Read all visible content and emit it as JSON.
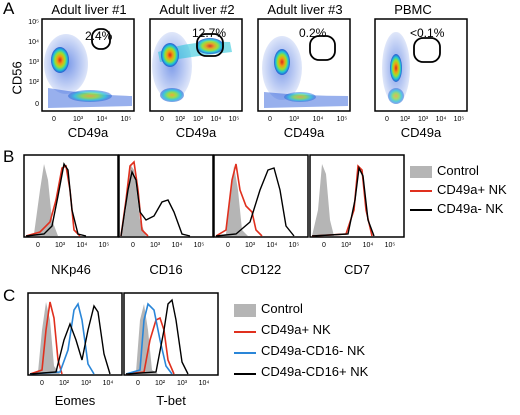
{
  "panelA": {
    "letter": "A",
    "ylabel": "CD56",
    "xlabel": "CD49a",
    "plots": [
      {
        "title": "Adult liver #1",
        "gate_pct": "2.4%"
      },
      {
        "title": "Adult liver #2",
        "gate_pct": "12.7%"
      },
      {
        "title": "Adult liver #3",
        "gate_pct": "0.2%"
      },
      {
        "title": "PBMC",
        "gate_pct": "<0.1%"
      }
    ],
    "yticks": [
      "10⁵",
      "10⁴",
      "10³",
      "10²",
      "0"
    ],
    "xticks": [
      "0",
      "10³",
      "10⁴",
      "10⁵"
    ],
    "xticks_alt": [
      "0",
      "10²",
      "10³",
      "10⁴",
      "10⁵"
    ]
  },
  "panelB": {
    "letter": "B",
    "xticks": [
      "0",
      "10³",
      "10⁴",
      "10⁵"
    ],
    "plots": [
      {
        "xlabel": "NKp46"
      },
      {
        "xlabel": "CD16"
      },
      {
        "xlabel": "CD122"
      },
      {
        "xlabel": "CD7"
      }
    ],
    "legend": [
      {
        "label": "Control",
        "color": "#b5b5b5",
        "kind": "fill"
      },
      {
        "label": "CD49a+ NK",
        "color": "#e0301e",
        "kind": "line"
      },
      {
        "label": "CD49a- NK",
        "color": "#000000",
        "kind": "line"
      }
    ]
  },
  "panelC": {
    "letter": "C",
    "xticks": [
      "0",
      "10²",
      "10³",
      "10⁴"
    ],
    "plots": [
      {
        "xlabel": "Eomes"
      },
      {
        "xlabel": "T-bet"
      }
    ],
    "legend": [
      {
        "label": "Control",
        "color": "#b5b5b5",
        "kind": "fill"
      },
      {
        "label": "CD49a+ NK",
        "color": "#e0301e",
        "kind": "line"
      },
      {
        "label": "CD49a-CD16- NK",
        "color": "#2a86d8",
        "kind": "line"
      },
      {
        "label": "CD49a-CD16+ NK",
        "color": "#000000",
        "kind": "line"
      }
    ]
  }
}
